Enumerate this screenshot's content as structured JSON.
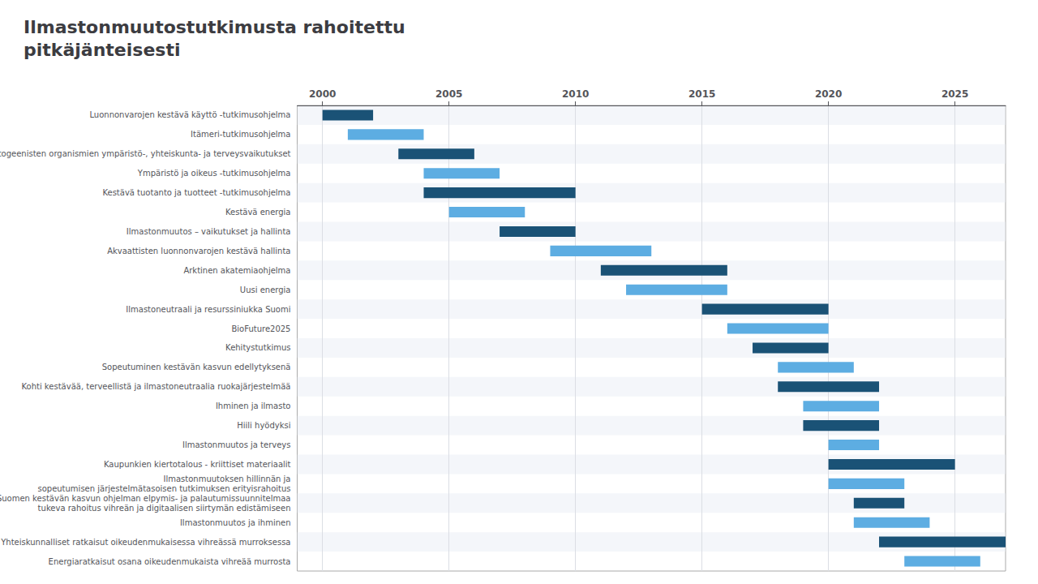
{
  "chart_data": {
    "type": "gantt",
    "orientation": "horizontal",
    "title": "Ilmastonmuutostutkimusta rahoitettu\npitkäjänteisesti",
    "categories": [
      "Luonnonvarojen kestävä käyttö -tutkimusohjelma",
      "Itämeri-tutkimusohjelma",
      "Muuntogeenisten organismien ympäristö-, yhteiskunta- ja terveysvaikutukset",
      "Ympäristö ja oikeus -tutkimusohjelma",
      "Kestävä tuotanto ja tuotteet -tutkimusohjelma",
      "Kestävä energia",
      "Ilmastonmuutos – vaikutukset ja hallinta",
      "Akvaattisten luonnonvarojen kestävä hallinta",
      "Arktinen akatemiaohjelma",
      "Uusi energia",
      "Ilmastoneutraali ja resurssiniukka Suomi",
      "BioFuture2025",
      "Kehitystutkimus",
      "Sopeutuminen kestävän kasvun edellytyksenä",
      "Kohti kestävää, terveellistä ja ilmastoneutraalia ruokajärjestelmää",
      "Ihminen ja ilmasto",
      "Hiili hyödyksi",
      "Ilmastonmuutos ja terveys",
      "Kaupunkien kiertotalous - kriittiset materiaalit",
      "Ilmastonmuutoksen hillinnän ja\nsopeutumisen järjestelmätasoisen tutkimuksen erityisrahoitus",
      "Suomen kestävän kasvun ohjelman elpymis- ja palautumissuunnitelmaa\ntukeva rahoitus vihreän ja digitaalisen siirtymän edistämiseen",
      "Ilmastonmuutos ja ihminen",
      "Yhteiskunnalliset ratkaisut oikeudenmukaisessa vihreässä murroksessa",
      "Energiaratkaisut osana oikeudenmukaista vihreää murrosta"
    ],
    "starts": [
      2000,
      2001,
      2003,
      2004,
      2004,
      2005,
      2007,
      2009,
      2011,
      2012,
      2015,
      2016,
      2017,
      2018,
      2018,
      2019,
      2019,
      2020,
      2020,
      2020,
      2021,
      2021,
      2022,
      2023
    ],
    "ends": [
      2002,
      2004,
      2006,
      2007,
      2010,
      2008,
      2010,
      2013,
      2016,
      2016,
      2020,
      2020,
      2020,
      2021,
      2022,
      2022,
      2022,
      2022,
      2025,
      2023,
      2023,
      2024,
      2027,
      2026
    ],
    "colors": [
      "#1a5276",
      "#5dade2",
      "#1a5276",
      "#5dade2",
      "#1a5276",
      "#5dade2",
      "#1a5276",
      "#5dade2",
      "#1a5276",
      "#5dade2",
      "#1a5276",
      "#5dade2",
      "#1a5276",
      "#5dade2",
      "#1a5276",
      "#5dade2",
      "#1a5276",
      "#5dade2",
      "#1a5276",
      "#5dade2",
      "#1a5276",
      "#5dade2",
      "#1a5276",
      "#5dade2"
    ],
    "xlim": [
      1999,
      2027
    ],
    "xticks": [
      2000,
      2005,
      2010,
      2015,
      2020,
      2025
    ],
    "grid": true
  }
}
